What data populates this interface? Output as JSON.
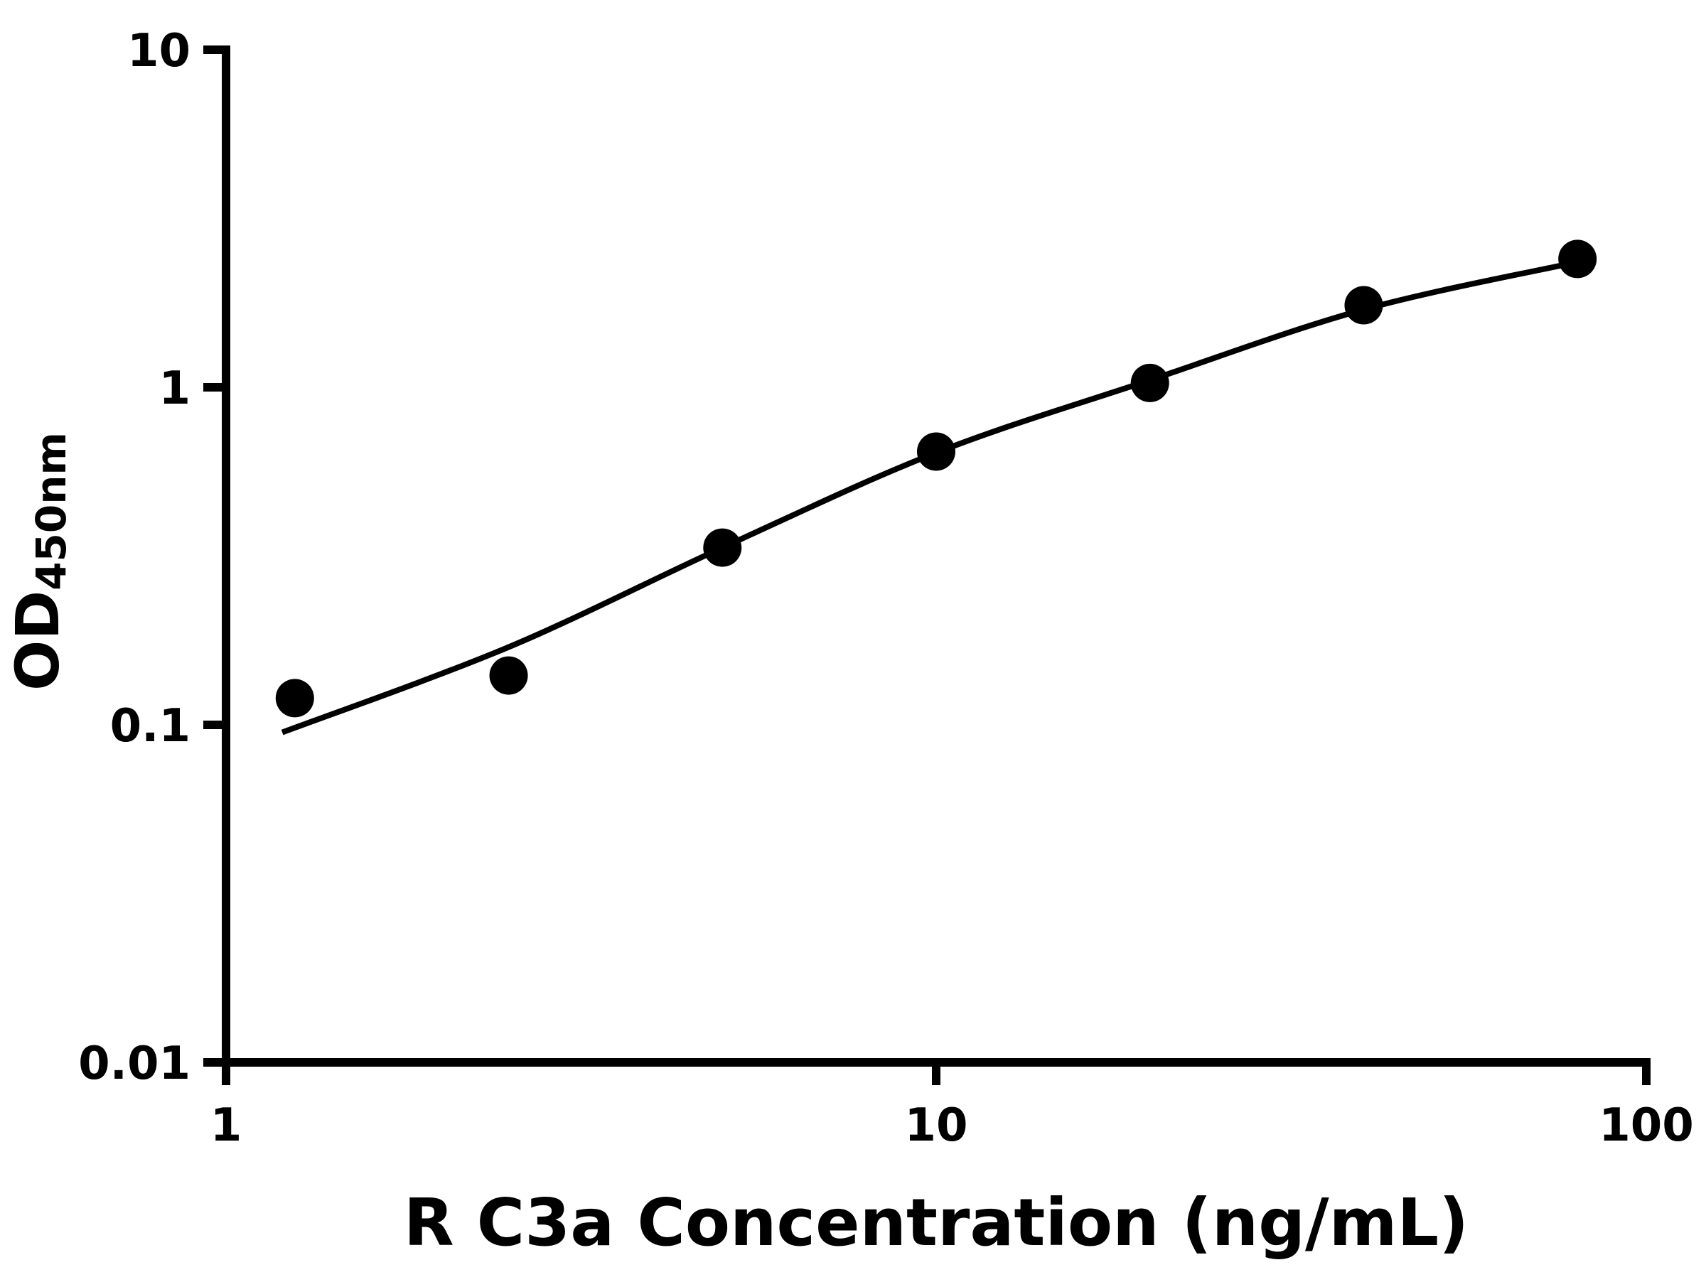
{
  "chart_data": {
    "type": "scatter",
    "title": "",
    "xlabel": "R C3a Concentration (ng/mL)",
    "ylabel_main": "OD",
    "ylabel_sub": "450nm",
    "x_scale": "log",
    "y_scale": "log",
    "xlim": [
      1,
      100
    ],
    "ylim": [
      0.01,
      10
    ],
    "x_ticks": [
      1,
      10,
      100
    ],
    "x_tick_labels": [
      "1",
      "10",
      "100"
    ],
    "y_ticks": [
      0.01,
      0.1,
      1,
      10
    ],
    "y_tick_labels": [
      "0.01",
      "0.1",
      "1",
      "10"
    ],
    "grid": "off",
    "legend": "none",
    "marker_color": "#000000",
    "line_color": "#000000",
    "points": [
      {
        "x": 1.25,
        "y": 0.12
      },
      {
        "x": 2.5,
        "y": 0.14
      },
      {
        "x": 5,
        "y": 0.335
      },
      {
        "x": 10,
        "y": 0.645
      },
      {
        "x": 20,
        "y": 1.03
      },
      {
        "x": 40,
        "y": 1.75
      },
      {
        "x": 80,
        "y": 2.4
      }
    ],
    "fit_curve": [
      {
        "x": 1.2,
        "y": 0.095
      },
      {
        "x": 2.5,
        "y": 0.17
      },
      {
        "x": 5,
        "y": 0.335
      },
      {
        "x": 10,
        "y": 0.64
      },
      {
        "x": 20,
        "y": 1.05
      },
      {
        "x": 40,
        "y": 1.7
      },
      {
        "x": 80,
        "y": 2.35
      }
    ]
  }
}
